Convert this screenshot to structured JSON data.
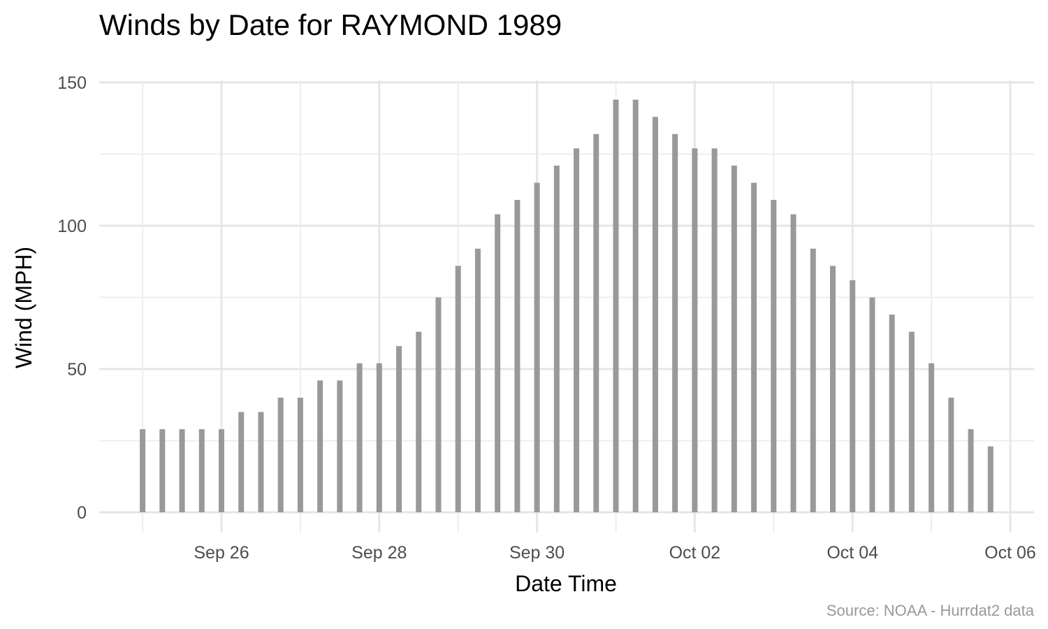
{
  "chart_data": {
    "type": "bar",
    "title": "Winds by Date for RAYMOND 1989",
    "xlabel": "Date Time",
    "ylabel": "Wind (MPH)",
    "caption": "Source: NOAA - Hurrdat2 data",
    "ylim": [
      0,
      150
    ],
    "yticks": [
      0,
      50,
      100,
      150
    ],
    "xlim": [
      "1989-09-24T13:00",
      "1989-10-06T00:00"
    ],
    "xticks": [
      {
        "date": "1989-09-26T00:00",
        "label": "Sep 26"
      },
      {
        "date": "1989-09-28T00:00",
        "label": "Sep 28"
      },
      {
        "date": "1989-09-30T00:00",
        "label": "Sep 30"
      },
      {
        "date": "1989-10-02T00:00",
        "label": "Oct 02"
      },
      {
        "date": "1989-10-04T00:00",
        "label": "Oct 04"
      },
      {
        "date": "1989-10-06T00:00",
        "label": "Oct 06"
      }
    ],
    "grid": true,
    "bar_color": "#999999",
    "series": [
      {
        "x": [
          "1989-09-25T00:00",
          "1989-09-25T06:00",
          "1989-09-25T12:00",
          "1989-09-25T18:00",
          "1989-09-26T00:00",
          "1989-09-26T06:00",
          "1989-09-26T12:00",
          "1989-09-26T18:00",
          "1989-09-27T00:00",
          "1989-09-27T06:00",
          "1989-09-27T12:00",
          "1989-09-27T18:00",
          "1989-09-28T00:00",
          "1989-09-28T06:00",
          "1989-09-28T12:00",
          "1989-09-28T18:00",
          "1989-09-29T00:00",
          "1989-09-29T06:00",
          "1989-09-29T12:00",
          "1989-09-29T18:00",
          "1989-09-30T00:00",
          "1989-09-30T06:00",
          "1989-09-30T12:00",
          "1989-09-30T18:00",
          "1989-10-01T00:00",
          "1989-10-01T06:00",
          "1989-10-01T12:00",
          "1989-10-01T18:00",
          "1989-10-02T00:00",
          "1989-10-02T06:00",
          "1989-10-02T12:00",
          "1989-10-02T18:00",
          "1989-10-03T00:00",
          "1989-10-03T06:00",
          "1989-10-03T12:00",
          "1989-10-03T18:00",
          "1989-10-04T00:00",
          "1989-10-04T06:00",
          "1989-10-04T12:00",
          "1989-10-04T18:00",
          "1989-10-05T00:00",
          "1989-10-05T06:00",
          "1989-10-05T12:00",
          "1989-10-05T18:00"
        ],
        "values": [
          29,
          29,
          29,
          29,
          29,
          35,
          35,
          40,
          40,
          46,
          46,
          52,
          52,
          58,
          63,
          75,
          86,
          92,
          104,
          109,
          115,
          121,
          127,
          132,
          144,
          144,
          138,
          132,
          127,
          127,
          121,
          115,
          109,
          104,
          92,
          86,
          81,
          75,
          69,
          63,
          52,
          40,
          29,
          23
        ]
      }
    ]
  }
}
